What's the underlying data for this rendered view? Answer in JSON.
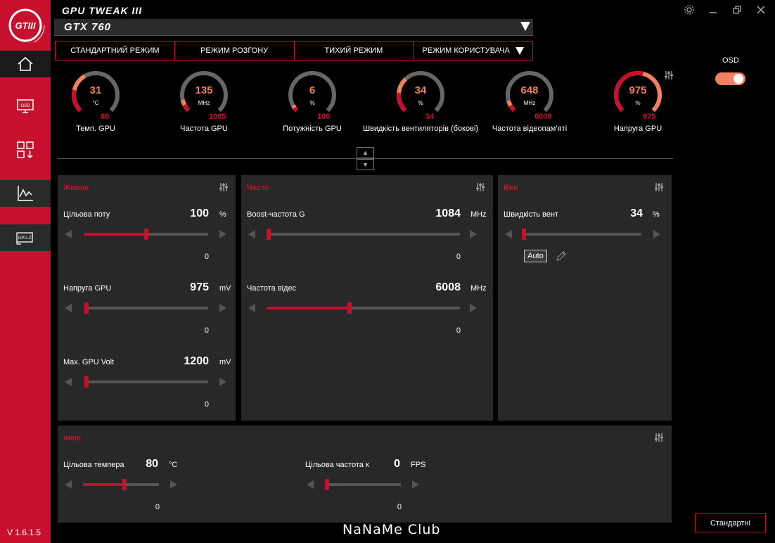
{
  "app": {
    "title": "GPU TWEAK III",
    "logo_text": "GTIII",
    "version": "V 1.6.1.5",
    "watermark": "NaNaMe Club"
  },
  "gpu": {
    "selected": "GTX 760"
  },
  "modes": [
    "СТАНДАРТНИЙ РЕЖИМ",
    "РЕЖИМ РОЗГОНУ",
    "ТИХИЙ РЕЖИМ",
    "РЕЖИМ КОРИСТУВАЧА"
  ],
  "gauges": [
    {
      "value": "31",
      "unit": "°C",
      "max": "80",
      "label": "Темп. GPU",
      "fraction": 0.39
    },
    {
      "value": "135",
      "unit": "MHz",
      "max": "1085",
      "label": "Частота GPU",
      "fraction": 0.12
    },
    {
      "value": "6",
      "unit": "%",
      "max": "100",
      "label": "Потужність GPU",
      "fraction": 0.06
    },
    {
      "value": "34",
      "unit": "%",
      "max": "34",
      "label": "Швидкість вентиляторів (бокові)",
      "fraction": 0.34
    },
    {
      "value": "648",
      "unit": "MHz",
      "max": "6008",
      "label": "Частота відеопам’яті",
      "fraction": 0.11
    },
    {
      "value": "975",
      "unit": "%",
      "max": "975",
      "label": "Напруга GPU",
      "fraction": 1.0
    }
  ],
  "panels": {
    "power": {
      "title": "Живле",
      "rows": [
        {
          "label": "Цільова поту",
          "value": "100",
          "unit": "%",
          "sub": "0",
          "fraction": 0.5
        },
        {
          "label": "Напруга GPU",
          "value": "975",
          "unit": "mV",
          "sub": "0",
          "fraction": 0.0
        },
        {
          "label": "Max. GPU Voltage",
          "value": "1200",
          "unit": "mV",
          "sub": "0",
          "fraction": 0.0
        }
      ]
    },
    "freq": {
      "title": "Частс",
      "rows": [
        {
          "label": "Boost-частота G",
          "value": "1084",
          "unit": "MHz",
          "sub": "0",
          "fraction": 0.0
        },
        {
          "label": "Частота відес",
          "value": "6008",
          "unit": "MHz",
          "sub": "0",
          "fraction": 0.43
        }
      ]
    },
    "fan": {
      "title": "Вен",
      "rows": [
        {
          "label": "Швидкість вент",
          "value": "34",
          "unit": "%",
          "fraction": 0.0
        }
      ],
      "auto_label": "Auto"
    },
    "other": {
      "title": "Інше",
      "rows": [
        {
          "label": "Цільова темпера",
          "value": "80",
          "unit": "°C",
          "sub": "0",
          "fraction": 0.55
        },
        {
          "label": "Цільова частота к",
          "value": "0",
          "unit": "FPS",
          "sub": "0",
          "fraction": 0.0
        }
      ]
    }
  },
  "osd": {
    "label": "OSD",
    "enabled": true
  },
  "defaults_button": "Стандартні",
  "colors": {
    "accent": "#c8102e",
    "gauge_orange": "#f08060",
    "panel_bg": "#282828"
  }
}
